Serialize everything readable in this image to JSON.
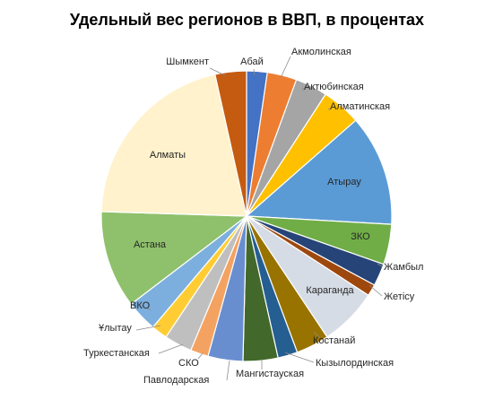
{
  "chart_data": {
    "type": "pie",
    "title": "Удельный вес регионов в ВВП, в процентах",
    "slices": [
      {
        "name": "Абай",
        "value": 2.3,
        "color": "#4472C4"
      },
      {
        "name": "Акмолинская",
        "value": 3.3,
        "color": "#ED7D31"
      },
      {
        "name": "Актюбинская",
        "value": 3.6,
        "color": "#A5A5A5"
      },
      {
        "name": "Алматинская",
        "value": 4.4,
        "color": "#FFC000"
      },
      {
        "name": "Атырау",
        "value": 12.4,
        "color": "#5B9BD5"
      },
      {
        "name": "ЗКО",
        "value": 4.5,
        "color": "#70AD47"
      },
      {
        "name": "Жамбыл",
        "value": 2.5,
        "color": "#264478"
      },
      {
        "name": "Жетісу",
        "value": 1.3,
        "color": "#9E480E"
      },
      {
        "name": "Караганда",
        "value": 6.5,
        "color": "#D6DCE5"
      },
      {
        "name": "Костанай",
        "value": 3.7,
        "color": "#997300"
      },
      {
        "name": "Кызылординская",
        "value": 2.2,
        "color": "#255E91"
      },
      {
        "name": "Мангистауская",
        "value": 3.9,
        "color": "#43682B"
      },
      {
        "name": "Павлодарская",
        "value": 3.9,
        "color": "#698ED0"
      },
      {
        "name": "СКО",
        "value": 2.0,
        "color": "#F4A261"
      },
      {
        "name": "Туркестанская",
        "value": 3.1,
        "color": "#BFBFBF"
      },
      {
        "name": "Ұлытау",
        "value": 1.8,
        "color": "#FFCD33"
      },
      {
        "name": "ВКО",
        "value": 3.5,
        "color": "#7CAFDD"
      },
      {
        "name": "Астана",
        "value": 10.9,
        "color": "#8FC16C"
      },
      {
        "name": "Алматы",
        "value": 21.1,
        "color": "#FFF2CC"
      },
      {
        "name": "Шымкент",
        "value": 3.5,
        "color": "#C55A11"
      }
    ]
  }
}
